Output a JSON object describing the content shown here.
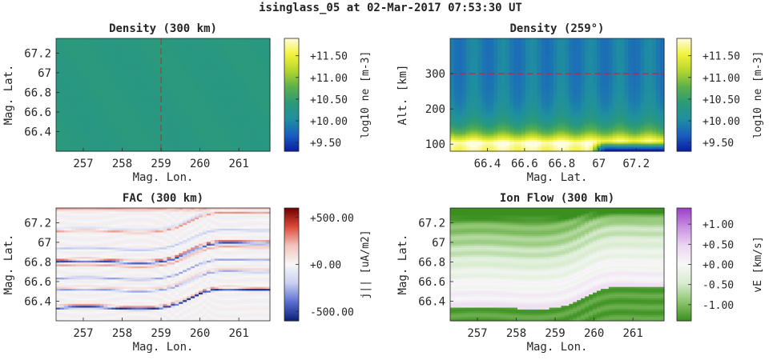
{
  "figure": {
    "title": "isinglass_05 at 02-Mar-2017 07:53:30 UT"
  },
  "colors": {
    "density_cmap": [
      "#0a1da0",
      "#1a5fc0",
      "#1f8fa0",
      "#2c9a78",
      "#5cb04a",
      "#b5d630",
      "#f2f23a",
      "#fffde0"
    ],
    "fac_cmap": [
      "#0b1f7a",
      "#5a6fd0",
      "#c9cff0",
      "#f7f7f7",
      "#f2c4bd",
      "#dc4a3a",
      "#6e0000"
    ],
    "ionflow_cmap": [
      "#3a8f1e",
      "#8cc46e",
      "#d8ecd0",
      "#f7f7f7",
      "#ecd6f2",
      "#c98fe0",
      "#9b3ec9"
    ],
    "marker_line": "#cc2222"
  },
  "chart_data": [
    {
      "type": "heatmap",
      "title": "Density (300 km)",
      "xlabel": "Mag. Lon.",
      "ylabel": "Mag. Lat.",
      "xlim": [
        256.3,
        261.8
      ],
      "ylim": [
        66.2,
        67.35
      ],
      "xticks": [
        "257",
        "258",
        "259",
        "260",
        "261"
      ],
      "xtick_values": [
        257,
        258,
        259,
        260,
        261
      ],
      "yticks": [
        "66.4",
        "66.6",
        "66.8",
        "67",
        "67.2"
      ],
      "ytick_values": [
        66.4,
        66.6,
        66.8,
        67.0,
        67.2
      ],
      "marker": {
        "orientation": "vertical",
        "value": 259
      },
      "field": {
        "kind": "uniform",
        "value": 10.35
      },
      "colorbar": {
        "label": "log10 ne [m-3]",
        "range": [
          9.3,
          11.9
        ],
        "ticks": [
          "+9.50",
          "+10.00",
          "+10.50",
          "+11.00",
          "+11.50"
        ],
        "tick_values": [
          9.5,
          10.0,
          10.5,
          11.0,
          11.5
        ]
      }
    },
    {
      "type": "heatmap",
      "title": "Density (259°)",
      "xlabel": "Mag. Lat.",
      "ylabel": "Alt. [km]",
      "xlim": [
        66.2,
        67.35
      ],
      "ylim": [
        80,
        400
      ],
      "xticks": [
        "66.4",
        "66.6",
        "66.8",
        "67",
        "67.2"
      ],
      "xtick_values": [
        66.4,
        66.6,
        66.8,
        67.0,
        67.2
      ],
      "yticks": [
        "100",
        "200",
        "300"
      ],
      "ytick_values": [
        100,
        200,
        300
      ],
      "marker": {
        "orientation": "horizontal",
        "value": 300
      },
      "field": {
        "kind": "altitude_profile",
        "peak_alt": 105,
        "peak_value": 11.9,
        "top_value": 9.9,
        "bottom_hole": {
          "from": 66.95,
          "to": 67.35,
          "value": 9.4
        }
      },
      "colorbar": {
        "label": "log10 ne [m-3]",
        "range": [
          9.3,
          11.9
        ],
        "ticks": [
          "+9.50",
          "+10.00",
          "+10.50",
          "+11.00",
          "+11.50"
        ],
        "tick_values": [
          9.5,
          10.0,
          10.5,
          11.0,
          11.5
        ]
      }
    },
    {
      "type": "heatmap",
      "title": "FAC (300 km)",
      "xlabel": "Mag. Lon.",
      "ylabel": "Mag. Lat.",
      "xlim": [
        256.3,
        261.8
      ],
      "ylim": [
        66.2,
        67.35
      ],
      "xticks": [
        "257",
        "258",
        "259",
        "260",
        "261"
      ],
      "xtick_values": [
        257,
        258,
        259,
        260,
        261
      ],
      "yticks": [
        "66.4",
        "66.6",
        "66.8",
        "67",
        "67.2"
      ],
      "ytick_values": [
        66.4,
        66.6,
        66.8,
        67.0,
        67.2
      ],
      "field": {
        "kind": "arc_bands",
        "bands": [
          {
            "offset": 0.0,
            "sign": -1,
            "strength": 1.0
          },
          {
            "offset": 0.02,
            "sign": 1,
            "strength": 0.5
          },
          {
            "offset": 0.18,
            "sign": -1,
            "strength": 0.6
          },
          {
            "offset": 0.2,
            "sign": 1,
            "strength": 0.35
          },
          {
            "offset": 0.3,
            "sign": -1,
            "strength": 0.45
          },
          {
            "offset": 0.43,
            "sign": 1,
            "strength": 0.4
          },
          {
            "offset": 0.47,
            "sign": -1,
            "strength": 0.9
          },
          {
            "offset": 0.49,
            "sign": 1,
            "strength": 0.6
          },
          {
            "offset": 0.6,
            "sign": -1,
            "strength": 0.4
          },
          {
            "offset": 0.78,
            "sign": 1,
            "strength": 0.55
          },
          {
            "offset": 0.8,
            "sign": -1,
            "strength": 0.35
          }
        ],
        "base_lat": 66.33,
        "top_red": true
      },
      "colorbar": {
        "label": "j|| [uA/m2]",
        "range": [
          -600,
          600
        ],
        "ticks": [
          "-500.00",
          "+0.00",
          "+500.00"
        ],
        "tick_values": [
          -500,
          0,
          500
        ]
      }
    },
    {
      "type": "heatmap",
      "title": "Ion Flow (300 km)",
      "xlabel": "Mag. Lon.",
      "ylabel": "Mag. Lat.",
      "xlim": [
        256.3,
        261.8
      ],
      "ylim": [
        66.2,
        67.35
      ],
      "xticks": [
        "257",
        "258",
        "259",
        "260",
        "261"
      ],
      "xtick_values": [
        257,
        258,
        259,
        260,
        261
      ],
      "yticks": [
        "66.4",
        "66.6",
        "66.8",
        "67",
        "67.2"
      ],
      "ytick_values": [
        66.4,
        66.6,
        66.8,
        67.0,
        67.2
      ],
      "field": {
        "kind": "flow_gradient",
        "base_lat": 66.33,
        "low_value": 0.4,
        "high_value": -1.3
      },
      "colorbar": {
        "label": "vE [km/s]",
        "range": [
          -1.4,
          1.4
        ],
        "ticks": [
          "-1.00",
          "-0.50",
          "+0.00",
          "+0.50",
          "+1.00"
        ],
        "tick_values": [
          -1.0,
          -0.5,
          0.0,
          0.5,
          1.0
        ]
      }
    }
  ]
}
